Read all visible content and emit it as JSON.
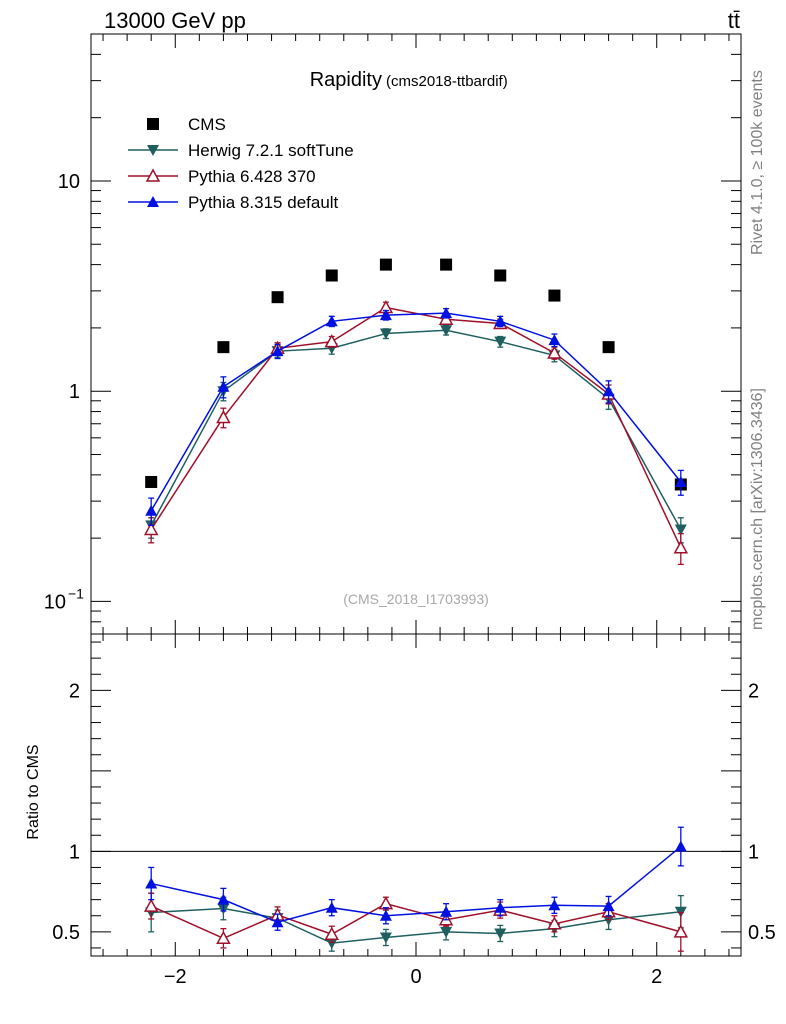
{
  "header": {
    "energy_label": "13000 GeV pp",
    "process_label": "tt̄"
  },
  "side": {
    "rivet_label": "Rivet 4.1.0, ≥ 100k events",
    "source_label": "mcplots.cern.ch [arXiv:1306.3436]"
  },
  "colors": {
    "CMS": "#000000",
    "Herwig": "#1f5f5f",
    "Pythia6": "#a0102a",
    "Pythia8": "#0010e0"
  },
  "chart_data": [
    {
      "type": "scatter",
      "title": "Rapidity",
      "subtitle": "(cms2018-ttbardif)",
      "watermark": "(CMS_2018_I1703993)",
      "xlabel": "",
      "ylabel": "",
      "yscale": "log",
      "xlim": [
        -2.7,
        2.7
      ],
      "ylim": [
        0.07,
        50
      ],
      "y_ticks": [
        {
          "value": 0.1,
          "base": "10",
          "exp": "−1"
        },
        {
          "value": 1,
          "base": "1",
          "exp": ""
        },
        {
          "value": 10,
          "base": "10",
          "exp": ""
        }
      ],
      "legend_position": "top-left",
      "x": [
        -2.2,
        -1.6,
        -1.15,
        -0.7,
        -0.25,
        0.25,
        0.7,
        1.15,
        1.6,
        2.2
      ],
      "series": [
        {
          "name": "CMS",
          "marker": "square",
          "line": false,
          "values": [
            0.37,
            1.62,
            2.8,
            3.55,
            4.0,
            4.0,
            3.55,
            2.85,
            1.62,
            0.36
          ],
          "errors": [
            0,
            0,
            0,
            0,
            0,
            0,
            0,
            0,
            0,
            0
          ]
        },
        {
          "name": "Herwig 7.2.1 softTune",
          "marker": "triangle-down",
          "values": [
            0.23,
            1.0,
            1.55,
            1.6,
            1.88,
            1.95,
            1.72,
            1.48,
            0.92,
            0.22
          ],
          "errors": [
            0.03,
            0.1,
            0.1,
            0.1,
            0.1,
            0.1,
            0.1,
            0.1,
            0.1,
            0.03
          ]
        },
        {
          "name": "Pythia 6.428 370",
          "marker": "triangle-up-open",
          "values": [
            0.22,
            0.75,
            1.6,
            1.72,
            2.5,
            2.2,
            2.1,
            1.52,
            0.97,
            0.18
          ],
          "errors": [
            0.03,
            0.08,
            0.1,
            0.1,
            0.15,
            0.1,
            0.1,
            0.1,
            0.1,
            0.03
          ]
        },
        {
          "name": "Pythia 8.315 default",
          "marker": "triangle-up",
          "values": [
            0.27,
            1.05,
            1.55,
            2.15,
            2.3,
            2.35,
            2.15,
            1.75,
            1.0,
            0.37
          ],
          "errors": [
            0.04,
            0.12,
            0.12,
            0.12,
            0.12,
            0.12,
            0.12,
            0.12,
            0.12,
            0.05
          ]
        }
      ]
    },
    {
      "type": "scatter",
      "title": "",
      "xlabel": "",
      "ylabel": "Ratio to CMS",
      "xlim": [
        -2.7,
        2.7
      ],
      "ylim": [
        0.35,
        2.35
      ],
      "x_ticks": [
        -2,
        0,
        2
      ],
      "y_ticks": [
        0.5,
        1,
        2
      ],
      "y_tick_labels": [
        "0.5",
        "1",
        "2"
      ],
      "reference_line": 1,
      "x": [
        -2.2,
        -1.6,
        -1.15,
        -0.7,
        -0.25,
        0.25,
        0.7,
        1.15,
        1.6,
        2.2
      ],
      "series": [
        {
          "name": "Herwig 7.2.1 softTune",
          "marker": "triangle-down",
          "values": [
            0.62,
            0.645,
            0.585,
            0.43,
            0.465,
            0.5,
            0.49,
            0.52,
            0.575,
            0.625
          ],
          "errors": [
            0.12,
            0.07,
            0.05,
            0.05,
            0.05,
            0.05,
            0.05,
            0.05,
            0.06,
            0.1
          ]
        },
        {
          "name": "Pythia 6.428 370",
          "marker": "triangle-up-open",
          "values": [
            0.66,
            0.46,
            0.605,
            0.485,
            0.675,
            0.575,
            0.635,
            0.55,
            0.625,
            0.5
          ],
          "errors": [
            0.08,
            0.06,
            0.05,
            0.05,
            0.04,
            0.04,
            0.05,
            0.05,
            0.05,
            0.12
          ]
        },
        {
          "name": "Pythia 8.315 default",
          "marker": "triangle-up",
          "values": [
            0.8,
            0.7,
            0.56,
            0.65,
            0.6,
            0.625,
            0.65,
            0.665,
            0.66,
            1.03
          ],
          "errors": [
            0.1,
            0.07,
            0.05,
            0.05,
            0.05,
            0.05,
            0.05,
            0.05,
            0.06,
            0.12
          ]
        }
      ]
    }
  ]
}
